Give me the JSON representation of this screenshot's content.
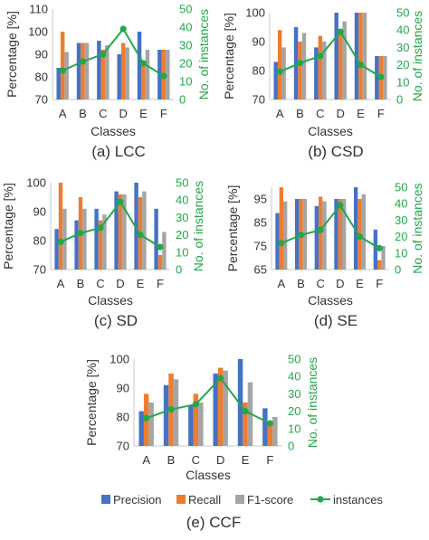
{
  "figure": {
    "legend": {
      "items": [
        {
          "label": "Precision",
          "color": "#4472C4",
          "kind": "bar"
        },
        {
          "label": "Recall",
          "color": "#ED7D31",
          "kind": "bar"
        },
        {
          "label": "F1-score",
          "color": "#A5A5A5",
          "kind": "bar"
        },
        {
          "label": "instances",
          "color": "#22A84A",
          "kind": "line"
        }
      ]
    }
  },
  "chart_data": [
    {
      "type": "bar",
      "title": "(a) LCC",
      "xlabel": "Classes",
      "ylabel": "Percentage [%]",
      "y2label": "No. of instances",
      "categories": [
        "A",
        "B",
        "C",
        "D",
        "E",
        "F"
      ],
      "ylim": [
        70,
        110
      ],
      "yticks": [
        70,
        80,
        90,
        100,
        110
      ],
      "y2lim": [
        0,
        50
      ],
      "y2ticks": [
        0,
        10,
        20,
        30,
        40,
        50
      ],
      "series": [
        {
          "name": "Precision",
          "values": [
            84,
            95,
            96,
            90,
            100,
            92
          ]
        },
        {
          "name": "Recall",
          "values": [
            100,
            95,
            92,
            95,
            85,
            92
          ]
        },
        {
          "name": "F1-score",
          "values": [
            91,
            95,
            94,
            93,
            92,
            92
          ]
        },
        {
          "name": "instances",
          "type": "line",
          "axis": "secondary",
          "values": [
            16,
            21,
            25,
            39,
            20,
            13
          ]
        }
      ]
    },
    {
      "type": "bar",
      "title": "(b) CSD",
      "xlabel": "Classes",
      "ylabel": "Percentage [%]",
      "y2label": "No. of instances",
      "categories": [
        "A",
        "B",
        "C",
        "D",
        "E",
        "F"
      ],
      "ylim": [
        70,
        100
      ],
      "yticks": [
        70,
        80,
        90,
        100
      ],
      "y2lim": [
        0,
        50
      ],
      "y2ticks": [
        0,
        10,
        20,
        30,
        40,
        50
      ],
      "series": [
        {
          "name": "Precision",
          "values": [
            83,
            95,
            88,
            100,
            100,
            85
          ]
        },
        {
          "name": "Recall",
          "values": [
            94,
            90,
            92,
            94,
            100,
            85
          ]
        },
        {
          "name": "F1-score",
          "values": [
            88,
            93,
            90,
            97,
            100,
            85
          ]
        },
        {
          "name": "instances",
          "type": "line",
          "axis": "secondary",
          "values": [
            16,
            21,
            25,
            39,
            20,
            13
          ]
        }
      ]
    },
    {
      "type": "bar",
      "title": "(c) SD",
      "xlabel": "Classes",
      "ylabel": "Percentage [%]",
      "y2label": "No. of instances",
      "categories": [
        "A",
        "B",
        "C",
        "D",
        "E",
        "F"
      ],
      "ylim": [
        70,
        100
      ],
      "yticks": [
        70,
        80,
        90,
        100
      ],
      "y2lim": [
        0,
        50
      ],
      "y2ticks": [
        0,
        10,
        20,
        30,
        40,
        50
      ],
      "series": [
        {
          "name": "Precision",
          "values": [
            84,
            87,
            91,
            97,
            100,
            91
          ]
        },
        {
          "name": "Recall",
          "values": [
            100,
            95,
            87,
            96,
            95,
            75
          ]
        },
        {
          "name": "F1-score",
          "values": [
            91,
            91,
            89,
            96,
            97,
            83
          ]
        },
        {
          "name": "instances",
          "type": "line",
          "axis": "secondary",
          "values": [
            16,
            21,
            24,
            39,
            20,
            13
          ]
        }
      ]
    },
    {
      "type": "bar",
      "title": "(d) SE",
      "xlabel": "Classes",
      "ylabel": "Percentage [%]",
      "y2label": "No. of instances",
      "categories": [
        "A",
        "B",
        "C",
        "D",
        "E",
        "F"
      ],
      "ylim": [
        65,
        100
      ],
      "yticks": [
        65,
        75,
        85,
        95
      ],
      "y2lim": [
        0,
        50
      ],
      "y2ticks": [
        0,
        10,
        20,
        30,
        40,
        50
      ],
      "series": [
        {
          "name": "Precision",
          "values": [
            89,
            95,
            92,
            95,
            100,
            82
          ]
        },
        {
          "name": "Recall",
          "values": [
            100,
            95,
            96,
            95,
            95,
            69
          ]
        },
        {
          "name": "F1-score",
          "values": [
            94,
            95,
            94,
            95,
            97,
            75
          ]
        },
        {
          "name": "instances",
          "type": "line",
          "axis": "secondary",
          "values": [
            16,
            21,
            24,
            39,
            20,
            13
          ]
        }
      ]
    },
    {
      "type": "bar",
      "title": "(e) CCF",
      "xlabel": "Classes",
      "ylabel": "Percentage [%]",
      "y2label": "No. of instances",
      "categories": [
        "A",
        "B",
        "C",
        "D",
        "E",
        "F"
      ],
      "ylim": [
        70,
        100
      ],
      "yticks": [
        70,
        80,
        90,
        100
      ],
      "y2lim": [
        0,
        50
      ],
      "y2ticks": [
        0,
        10,
        20,
        30,
        40,
        50
      ],
      "series": [
        {
          "name": "Precision",
          "values": [
            82,
            91,
            84,
            95,
            100,
            83
          ]
        },
        {
          "name": "Recall",
          "values": [
            88,
            95,
            88,
            97,
            85,
            78
          ]
        },
        {
          "name": "F1-score",
          "values": [
            85,
            93,
            85,
            96,
            92,
            80
          ]
        },
        {
          "name": "instances",
          "type": "line",
          "axis": "secondary",
          "values": [
            16,
            21,
            24,
            39,
            20,
            13
          ]
        }
      ]
    }
  ]
}
